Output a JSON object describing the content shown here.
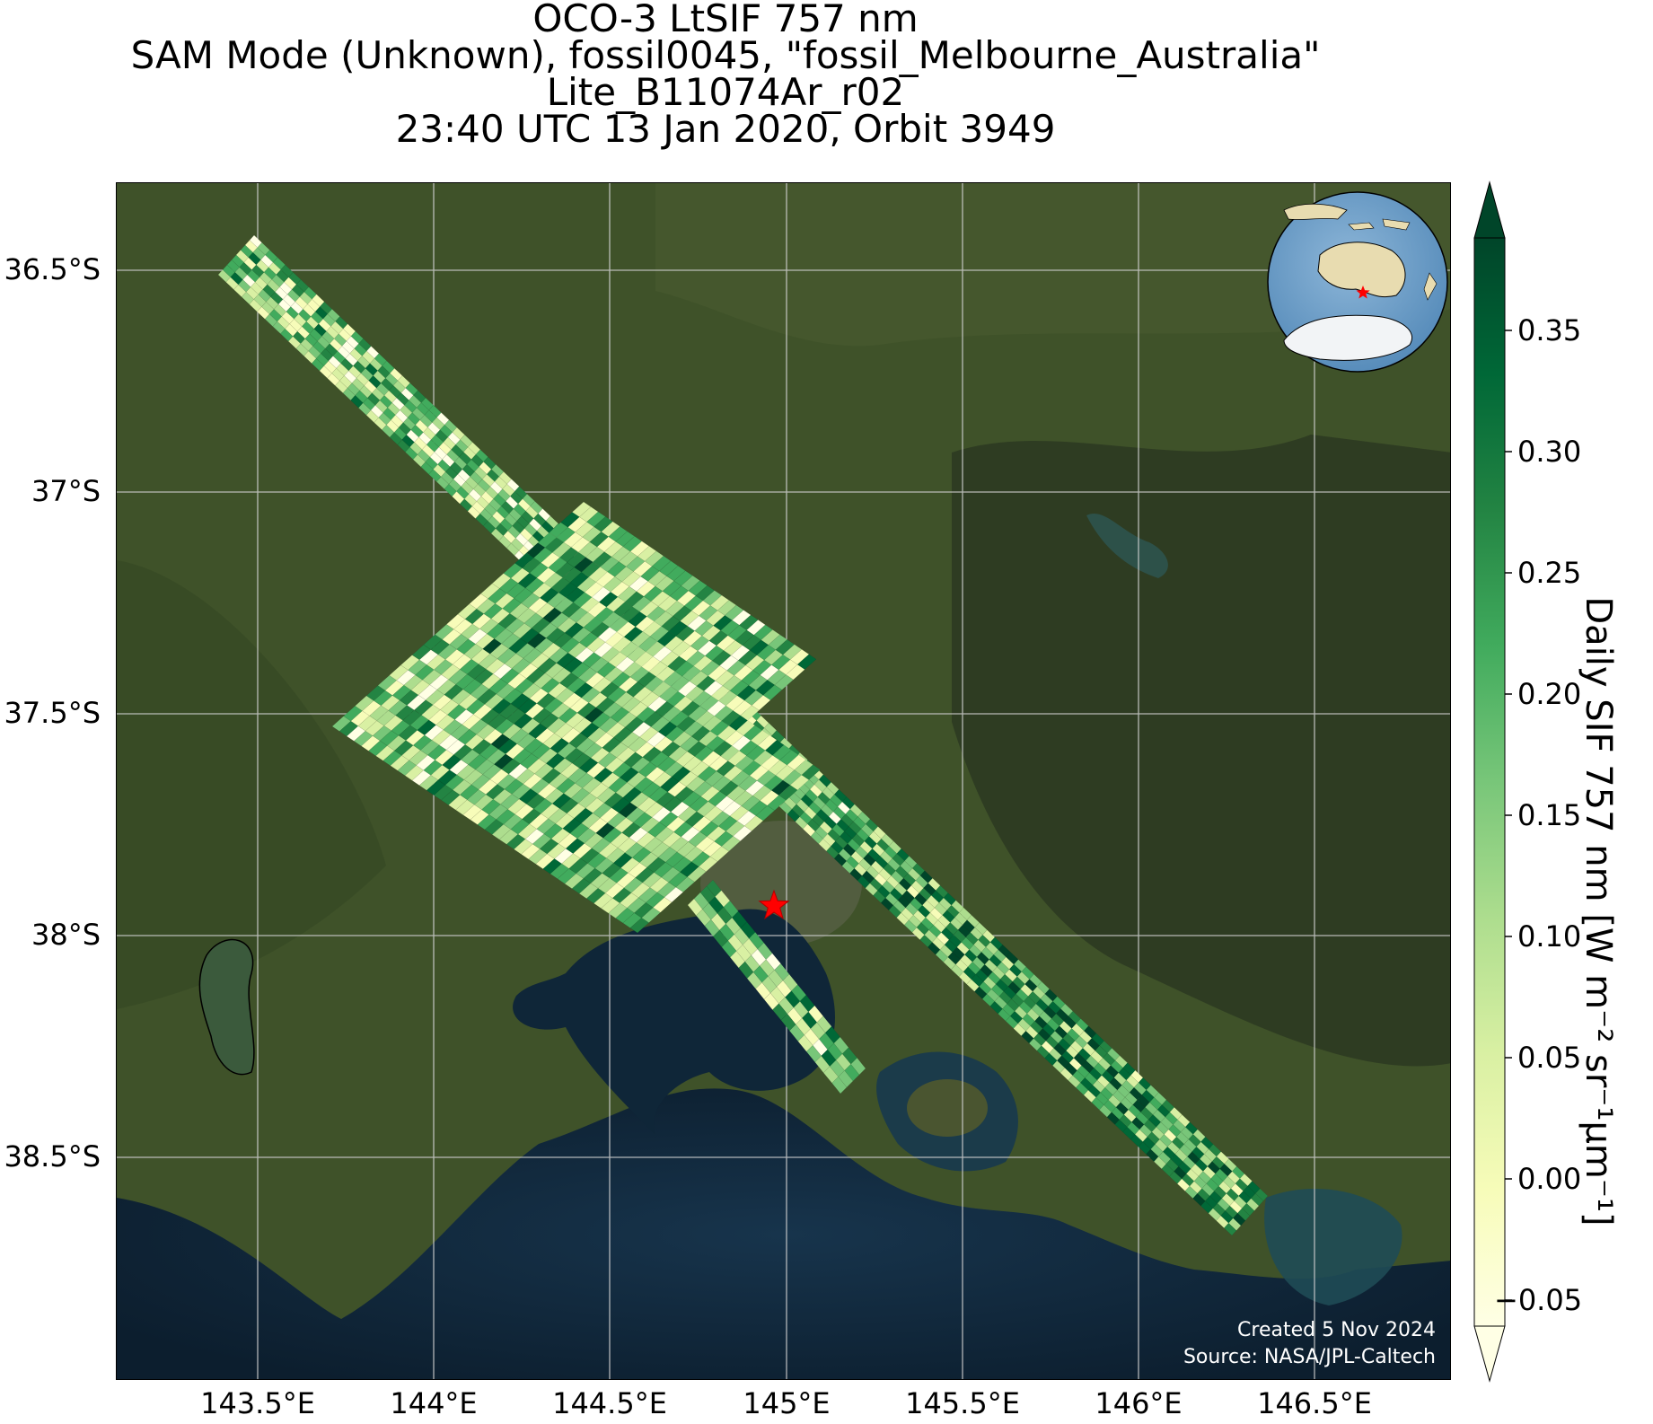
{
  "title": {
    "line1": "OCO-3 LtSIF 757 nm",
    "line2": "SAM Mode (Unknown), fossil0045, \"fossil_Melbourne_Australia\"",
    "line3": "Lite_B11074Ar_r02",
    "line4": "23:40 UTC 13 Jan 2020, Orbit 3949"
  },
  "map": {
    "lat_ticks": [
      "36.5°S",
      "37°S",
      "37.5°S",
      "38°S",
      "38.5°S"
    ],
    "lon_ticks": [
      "143.5°E",
      "144°E",
      "144.5°E",
      "145°E",
      "145.5°E",
      "146°E",
      "146.5°E"
    ],
    "credit_line1": "Created 5 Nov 2024",
    "credit_line2": "Source: NASA/JPL-Caltech",
    "target_marker": "red-star",
    "inset": "orthographic globe centered on Australia with red star at Melbourne"
  },
  "colorbar": {
    "label": "Daily SIF 757 nm [W m⁻² sr⁻¹μm⁻¹]",
    "ticks": [
      "0.35",
      "0.30",
      "0.25",
      "0.20",
      "0.15",
      "0.10",
      "0.05",
      "0.00",
      "−0.05"
    ],
    "colormap": "YlGn",
    "extend": "both"
  },
  "colors": {
    "star": "#ff0000",
    "ocean": "#10263a",
    "land": "#3e4f2a"
  }
}
